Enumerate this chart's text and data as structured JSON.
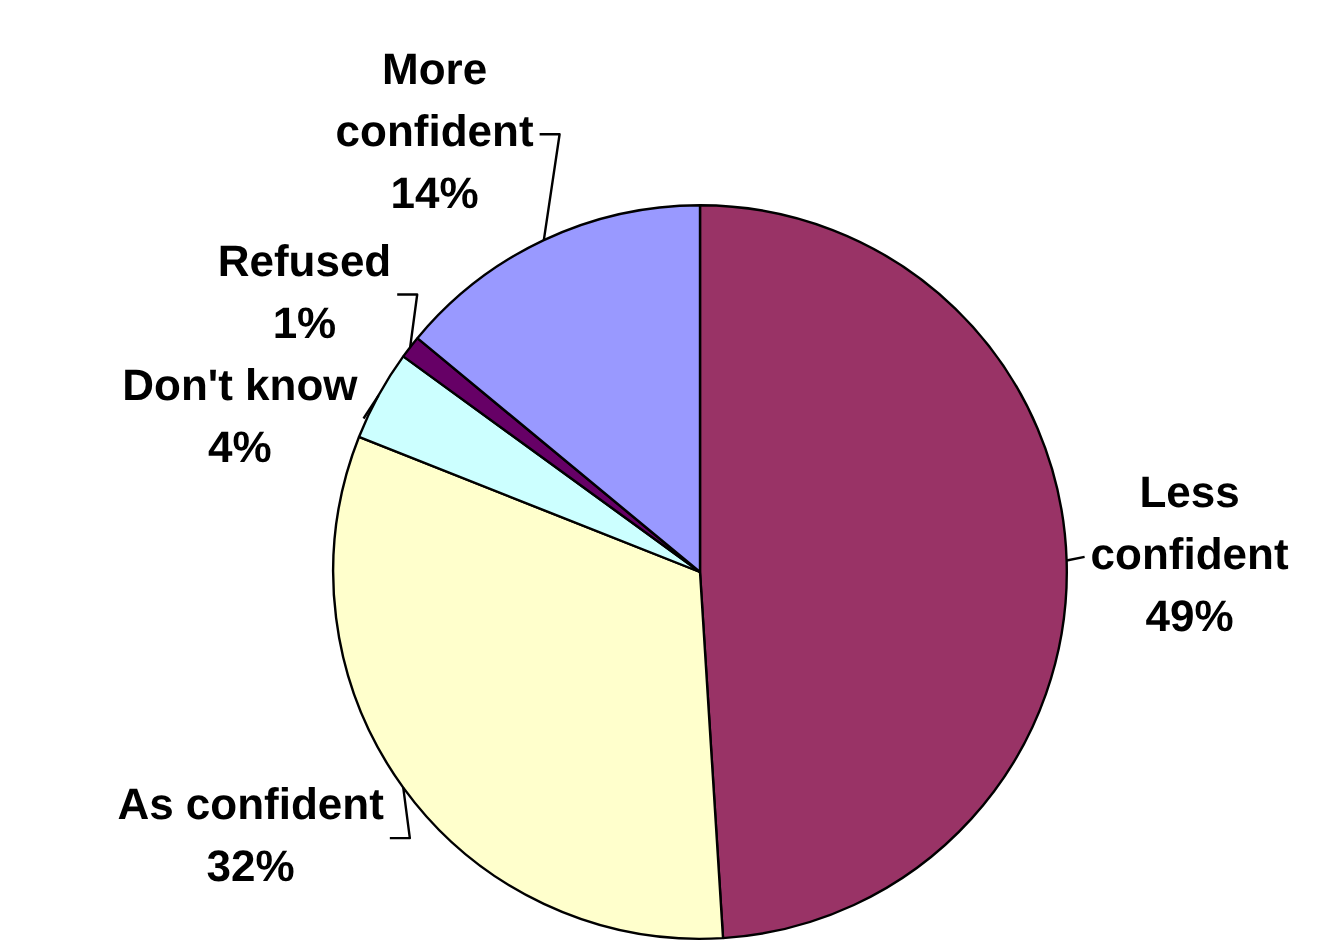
{
  "chart_data": {
    "type": "pie",
    "categories": [
      "Less confident",
      "As confident",
      "Don't know",
      "Refused",
      "More confident"
    ],
    "values": [
      49,
      32,
      4,
      1,
      14
    ],
    "colors": [
      "#993366",
      "#ffffcc",
      "#ccffff",
      "#660066",
      "#9999ff"
    ],
    "value_labels": [
      "49%",
      "32%",
      "4%",
      "1%",
      "14%"
    ]
  }
}
